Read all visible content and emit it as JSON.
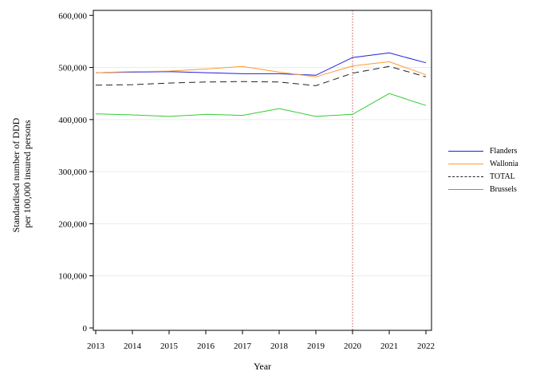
{
  "chart_data": {
    "type": "line",
    "xlabel": "Year",
    "ylabel": [
      "Standardised number of DDD",
      "per 100,000 insured persons"
    ],
    "x": [
      2013,
      2014,
      2015,
      2016,
      2017,
      2018,
      2019,
      2020,
      2021,
      2022
    ],
    "x_tick_labels": [
      "2013",
      "2014",
      "2015",
      "2016",
      "2017",
      "2018",
      "2019",
      "2020",
      "2021",
      "2022"
    ],
    "y_ticks": [
      0,
      100000,
      200000,
      300000,
      400000,
      500000,
      600000
    ],
    "y_tick_labels": [
      "0",
      "100,000",
      "200,000",
      "300,000",
      "400,000",
      "500,000",
      "600,000"
    ],
    "ylim": [
      0,
      605000
    ],
    "xlim": [
      2013,
      2022
    ],
    "grid": "horizontal",
    "legend_position": "right",
    "reference_line": {
      "x": 2020,
      "color": "#c0504d",
      "style": "dotted"
    },
    "series": [
      {
        "name": "Flanders",
        "color": "#1f1fe0",
        "style": "solid",
        "values": [
          490000,
          491000,
          492000,
          490000,
          488000,
          488000,
          485000,
          519000,
          528000,
          509000
        ]
      },
      {
        "name": "Wallonia",
        "color": "#ff9933",
        "style": "solid",
        "values": [
          490000,
          492000,
          493000,
          497000,
          502000,
          491000,
          482000,
          503000,
          511000,
          486000
        ]
      },
      {
        "name": "TOTAL",
        "color": "#222222",
        "style": "dashed",
        "values": [
          466000,
          467000,
          470000,
          472000,
          473000,
          472000,
          465000,
          489000,
          502000,
          482000
        ]
      },
      {
        "name": "Brussels",
        "color": "#33cc33",
        "style": "solid",
        "values": [
          411000,
          409000,
          406000,
          410000,
          408000,
          421000,
          406000,
          410000,
          450000,
          427000
        ]
      }
    ]
  }
}
